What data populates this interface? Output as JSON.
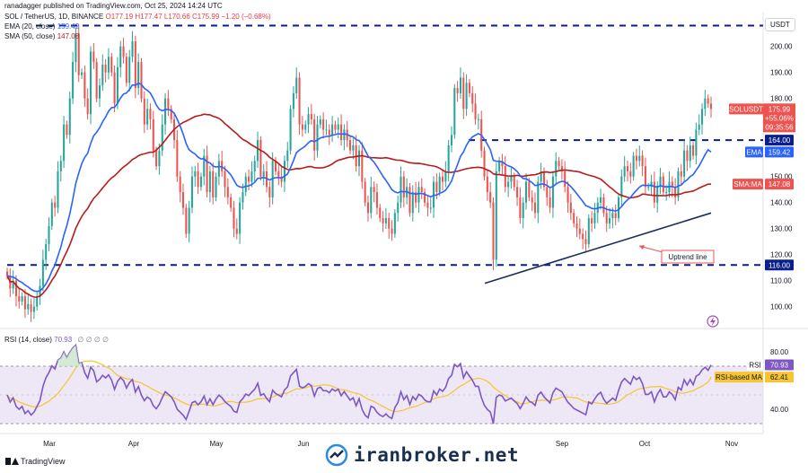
{
  "header": {
    "publisher": "ranadagger published on TradingView.com, Oct 25, 2024 14:24 UTC",
    "symbol_line": "SOL / TetherUS, 1D, BINANCE",
    "ohlc": "O177.19 H177.47 L170.66 C175.99 −1.20 (−0.68%)",
    "ema_line_label": "EMA (20, close)",
    "ema_line_value": "159.42",
    "sma_line_label": "SMA (50, close)",
    "sma_line_value": "147.08",
    "rsi_line_label": "RSI (14, close)",
    "rsi_line_value": "70.93",
    "rsi_placeholders": "∅ ∅ ∅ ∅"
  },
  "currency": "USDT",
  "footer": {
    "brand": "TradingView",
    "watermark": "iranbroker.net"
  },
  "annotations": {
    "uptrend": "Uptrend line"
  },
  "colors": {
    "ema": "#2962ff",
    "sma": "#b71c1c",
    "up": "#26a69a",
    "down": "#ef5350",
    "level": "#0b1f8a",
    "trendline": "#1c2e5c",
    "rsi": "#7e57c2",
    "rsi_ma": "#f7c531",
    "rsi_band": "#ede7f6",
    "price_tag": "#ef5350"
  },
  "chart_data": [
    {
      "type": "candlestick",
      "pane": "price",
      "title": "SOL / TetherUS, 1D, BINANCE",
      "x_ticks": [
        "Mar",
        "Apr",
        "May",
        "Jun",
        "Sep",
        "Oct",
        "Nov"
      ],
      "y_ticks": [
        100,
        110,
        120,
        130,
        140,
        150,
        160,
        170,
        180,
        190,
        200
      ],
      "ylim": [
        93,
        213
      ],
      "levels": [
        {
          "value": 208,
          "label": ""
        },
        {
          "value": 164,
          "label": "164.00"
        },
        {
          "value": 116,
          "label": "116.00"
        }
      ],
      "price_labels": [
        {
          "name": "SOLUSDT",
          "value": 175.99,
          "label": "175.99",
          "extra": [
            "+55.06%",
            "09:35:56"
          ]
        },
        {
          "name": "EMA",
          "value": 159.42,
          "label": "159.42"
        },
        {
          "name": "SMA:MA",
          "value": 147.08,
          "label": "147.08"
        }
      ],
      "closes": [
        112,
        107,
        110,
        104,
        102,
        104,
        99,
        101,
        98,
        100,
        104,
        108,
        118,
        124,
        131,
        140,
        138,
        152,
        156,
        170,
        166,
        180,
        194,
        205,
        189,
        190,
        180,
        174,
        198,
        194,
        180,
        185,
        193,
        190,
        196,
        190,
        178,
        192,
        200,
        196,
        186,
        196,
        202,
        184,
        194,
        180,
        170,
        176,
        172,
        160,
        154,
        160,
        170,
        180,
        176,
        172,
        164,
        150,
        144,
        138,
        128,
        138,
        150,
        152,
        146,
        150,
        158,
        144,
        152,
        142,
        150,
        156,
        152,
        146,
        142,
        138,
        130,
        128,
        140,
        144,
        150,
        148,
        152,
        156,
        164,
        150,
        152,
        146,
        142,
        156,
        152,
        150,
        148,
        156,
        160,
        176,
        182,
        188,
        170,
        168,
        170,
        174,
        172,
        160,
        170,
        172,
        168,
        168,
        166,
        170,
        168,
        170,
        164,
        168,
        164,
        160,
        162,
        154,
        160,
        148,
        140,
        136,
        146,
        144,
        138,
        134,
        132,
        134,
        130,
        128,
        136,
        140,
        150,
        142,
        146,
        136,
        144,
        140,
        146,
        144,
        140,
        138,
        138,
        148,
        144,
        150,
        148,
        152,
        162,
        166,
        184,
        182,
        188,
        176,
        186,
        182,
        178,
        172,
        172,
        160,
        150,
        144,
        140,
        118,
        152,
        156,
        154,
        146,
        148,
        150,
        146,
        142,
        134,
        140,
        148,
        142,
        140,
        136,
        148,
        152,
        146,
        142,
        138,
        150,
        156,
        154,
        152,
        146,
        140,
        136,
        132,
        130,
        128,
        126,
        124,
        134,
        132,
        136,
        140,
        142,
        136,
        132,
        134,
        136,
        134,
        142,
        150,
        154,
        152,
        150,
        158,
        156,
        158,
        154,
        146,
        146,
        148,
        140,
        146,
        150,
        144,
        144,
        148,
        146,
        142,
        152,
        150,
        160,
        156,
        162,
        158,
        168,
        170,
        176,
        180,
        178,
        176
      ],
      "series": [
        {
          "name": "EMA (20, close)",
          "last": 159.42
        },
        {
          "name": "SMA (50, close)",
          "last": 147.08
        },
        {
          "name": "Uptrend line",
          "from": 109,
          "to": 136
        }
      ]
    },
    {
      "type": "line",
      "pane": "rsi",
      "title": "RSI (14, close)",
      "y_ticks": [
        40,
        80
      ],
      "ylim": [
        25,
        95
      ],
      "band": [
        30,
        70
      ],
      "price_labels": [
        {
          "name": "RSI",
          "value": 70.93,
          "label": "70.93"
        },
        {
          "name": "RSI-based MA",
          "value": 62.41,
          "label": "62.41"
        }
      ],
      "series": [
        {
          "name": "RSI",
          "last": 70.93
        },
        {
          "name": "RSI-based MA",
          "last": 62.41
        }
      ]
    }
  ]
}
